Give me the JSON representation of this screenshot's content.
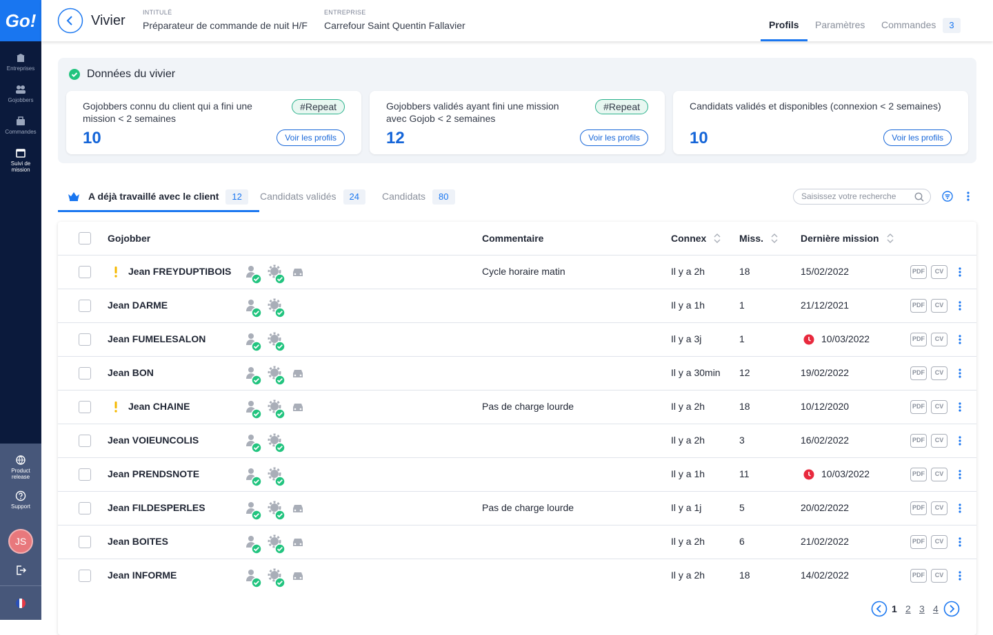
{
  "sidebar": {
    "logo": "Go!",
    "nav": [
      "Entreprises",
      "Gojobbers",
      "Commandes",
      "Suivi de mission"
    ],
    "active_nav": 3,
    "bottom": [
      "Product release",
      "Support"
    ],
    "avatar": "JS"
  },
  "header": {
    "title": "Vivier",
    "fields": [
      {
        "label": "INTITULÉ",
        "value": "Préparateur de commande de nuit H/F"
      },
      {
        "label": "ENTREPRISE",
        "value": "Carrefour Saint Quentin Fallavier"
      }
    ],
    "tabs": [
      {
        "label": "Profils",
        "active": true
      },
      {
        "label": "Paramètres"
      },
      {
        "label": "Commandes",
        "count": 3
      }
    ]
  },
  "stats": {
    "title": "Données du vivier",
    "cards": [
      {
        "text": "Gojobbers connu du client qui a fini une mission < 2 semaines",
        "tag": "#Repeat",
        "value": 10,
        "button": "Voir les profils"
      },
      {
        "text": "Gojobbers validés ayant fini une mission avec Gojob < 2 semaines",
        "tag": "#Repeat",
        "value": 12,
        "button": "Voir les profils"
      },
      {
        "text": "Candidats validés et disponibles (connexion < 2 semaines)",
        "value": 10,
        "button": "Voir les profils"
      }
    ]
  },
  "tabs": [
    {
      "label": "A déjà travaillé avec le client",
      "count": 12,
      "active": true
    },
    {
      "label": "Candidats validés",
      "count": 24
    },
    {
      "label": "Candidats",
      "count": 80
    }
  ],
  "search": {
    "placeholder": "Saisissez votre recherche"
  },
  "table": {
    "columns": [
      "Gojobber",
      "Commentaire",
      "Connex",
      "Miss.",
      "Dernière mission"
    ],
    "sortable": [
      false,
      false,
      true,
      true,
      true
    ],
    "doc_buttons": [
      "PDF",
      "CV"
    ],
    "rows": [
      {
        "name": "Jean FREYDUPTIBOIS",
        "warning": true,
        "vehicle": true,
        "comment": "Cycle horaire matin",
        "connex": "Il y a 2h",
        "missions": 18,
        "last_mission": "15/02/2022",
        "alert": false
      },
      {
        "name": "Jean DARME",
        "warning": false,
        "vehicle": false,
        "comment": null,
        "connex": "Il y a 1h",
        "missions": 1,
        "last_mission": "21/12/2021",
        "alert": false
      },
      {
        "name": "Jean FUMELESALON",
        "warning": false,
        "vehicle": false,
        "comment": null,
        "connex": "Il y a 3j",
        "missions": 1,
        "last_mission": "10/03/2022",
        "alert": true
      },
      {
        "name": "Jean BON",
        "warning": false,
        "vehicle": true,
        "comment": null,
        "connex": "Il y a 30min",
        "missions": 12,
        "last_mission": "19/02/2022",
        "alert": false
      },
      {
        "name": "Jean CHAINE",
        "warning": true,
        "vehicle": true,
        "comment": "Pas de charge lourde",
        "connex": "Il y a 2h",
        "missions": 18,
        "last_mission": "10/12/2020",
        "alert": false
      },
      {
        "name": "Jean VOIEUNCOLIS",
        "warning": false,
        "vehicle": false,
        "comment": null,
        "connex": "Il y a 2h",
        "missions": 3,
        "last_mission": "16/02/2022",
        "alert": false
      },
      {
        "name": "Jean PRENDSNOTE",
        "warning": false,
        "vehicle": false,
        "comment": null,
        "connex": "Il y a 1h",
        "missions": 11,
        "last_mission": "10/03/2022",
        "alert": true
      },
      {
        "name": "Jean FILDESPERLES",
        "warning": false,
        "vehicle": true,
        "comment": "Pas de charge lourde",
        "connex": "Il y a 1j",
        "missions": 5,
        "last_mission": "20/02/2022",
        "alert": false
      },
      {
        "name": "Jean BOITES",
        "warning": false,
        "vehicle": true,
        "comment": null,
        "connex": "Il y a 2h",
        "missions": 6,
        "last_mission": "21/02/2022",
        "alert": false
      },
      {
        "name": "Jean INFORME",
        "warning": false,
        "vehicle": true,
        "comment": null,
        "connex": "Il y a 2h",
        "missions": 18,
        "last_mission": "14/02/2022",
        "alert": false
      }
    ]
  },
  "pagination": {
    "pages": [
      1,
      2,
      3,
      4
    ],
    "current": 1
  }
}
